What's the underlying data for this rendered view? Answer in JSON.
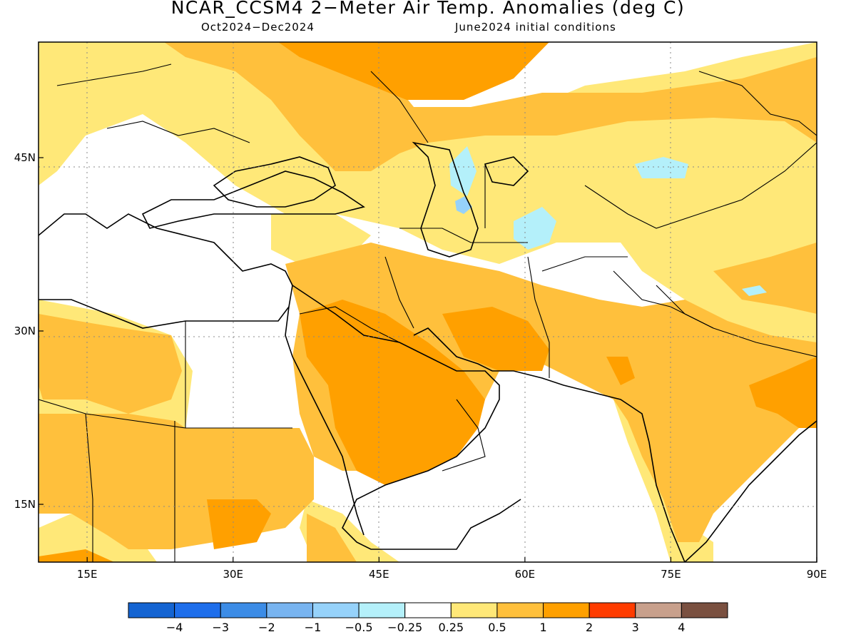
{
  "title": "NCAR_CCSM4 2−Meter Air Temp. Anomalies (deg C)",
  "period": "Oct2024−Dec2024",
  "initial_conditions": "June2024 initial conditions",
  "map": {
    "lon_range": [
      10,
      90
    ],
    "lat_range": [
      10,
      55
    ],
    "x_ticks": [
      {
        "lon": 15,
        "label": "15E"
      },
      {
        "lon": 30,
        "label": "30E"
      },
      {
        "lon": 45,
        "label": "45E"
      },
      {
        "lon": 60,
        "label": "60E"
      },
      {
        "lon": 75,
        "label": "75E"
      },
      {
        "lon": 90,
        "label": "90E"
      }
    ],
    "y_ticks": [
      {
        "lat": 45,
        "label": "45N"
      },
      {
        "lat": 30,
        "label": "30N"
      },
      {
        "lat": 15,
        "label": "15N"
      }
    ],
    "grid": "dotted",
    "region": "Middle East, North Africa and South Asia"
  },
  "colorbar": {
    "colors": [
      "#1464d2",
      "#1e6eeb",
      "#3c8ce6",
      "#78b4f0",
      "#96d2fa",
      "#b4f0fa",
      "#ffffff",
      "#ffe878",
      "#ffc03c",
      "#ffa000",
      "#ff3c00",
      "#c8a08c",
      "#7a5040"
    ],
    "labels": [
      "−4",
      "−3",
      "−2",
      "−1",
      "−0.5",
      "−0.25",
      "0.25",
      "0.5",
      "1",
      "2",
      "3",
      "4"
    ]
  }
}
